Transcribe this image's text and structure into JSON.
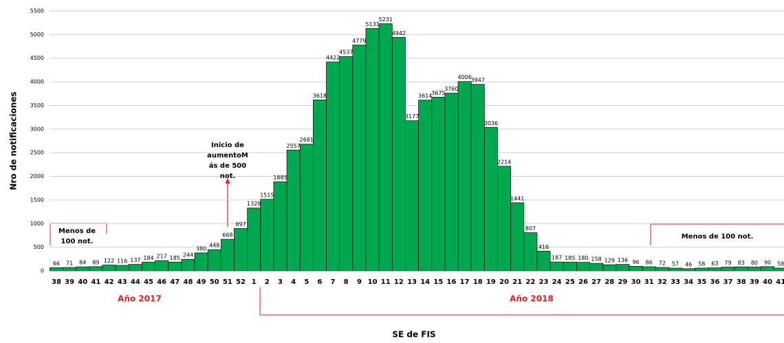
{
  "chart_data": {
    "type": "bar",
    "x_label": "SE de FIS",
    "y_label": "Nro de notificaciones",
    "categories": [
      "38",
      "39",
      "40",
      "41",
      "42",
      "43",
      "44",
      "45",
      "46",
      "47",
      "48",
      "49",
      "50",
      "51",
      "52",
      "1",
      "2",
      "3",
      "4",
      "5",
      "6",
      "7",
      "8",
      "9",
      "10",
      "11",
      "12",
      "13",
      "14",
      "15",
      "16",
      "17",
      "18",
      "19",
      "20",
      "21",
      "22",
      "23",
      "24",
      "25",
      "26",
      "27",
      "28",
      "29",
      "30",
      "31",
      "32",
      "33",
      "34",
      "35",
      "36",
      "37",
      "38",
      "39",
      "40",
      "41"
    ],
    "values": [
      66,
      71,
      84,
      89,
      122,
      116,
      137,
      184,
      217,
      185,
      244,
      380,
      448,
      668,
      897,
      1329,
      1515,
      1885,
      2557,
      2681,
      3618,
      4422,
      4537,
      4779,
      5131,
      5231,
      4942,
      3177,
      3614,
      3675,
      3760,
      4006,
      3947,
      3036,
      2214,
      1441,
      807,
      416,
      187,
      185,
      180,
      158,
      129,
      136,
      96,
      86,
      72,
      57,
      46,
      58,
      63,
      79,
      83,
      80,
      90,
      58
    ],
    "color": "#00a84f",
    "ylim": [
      0,
      5500
    ],
    "yticks": [
      0,
      500,
      1000,
      1500,
      2000,
      2500,
      3000,
      3500,
      4000,
      4500,
      5000,
      5500
    ],
    "grid": true,
    "year_labels": [
      "Año 2017",
      "Año 2018"
    ],
    "annotations": [
      {
        "lines": [
          "Inicio de",
          "aumentoM",
          "ás de 500",
          "not."
        ]
      },
      {
        "lines": [
          "Menos de",
          "100 not."
        ]
      },
      {
        "lines": [
          "Menos de 100 not."
        ]
      }
    ]
  }
}
